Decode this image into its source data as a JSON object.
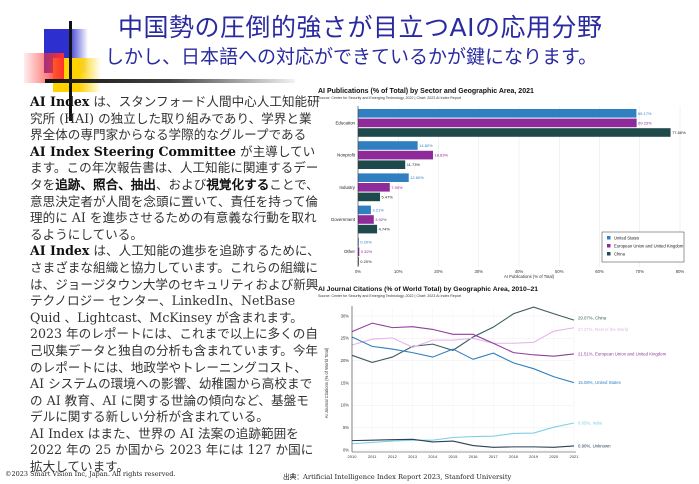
{
  "header": {
    "title": "中国勢の圧倒的強さが目立つAIの応用分野",
    "subtitle": "しかし、日本語への対応ができているかが鍵になります。"
  },
  "body": {
    "p1": [
      {
        "t": "AI Index",
        "b": true
      },
      {
        "t": " は、スタンフォード人間中心人工知能研究所 (HAI) の独立した取り組みであり、学界と業界全体の専門家からなる学際的なグループである ",
        "b": false
      },
      {
        "t": "AI Index Steering Committee",
        "b": true
      },
      {
        "t": " が主導しています。この年次報告書は、人工知能に関連するデータを",
        "b": false
      },
      {
        "t": "追跡、照合、抽出",
        "b": true
      },
      {
        "t": "、および",
        "b": false
      },
      {
        "t": "視覚化する",
        "b": true
      },
      {
        "t": "ことで、意思決定者が人間を念頭に置いて、責任を持って倫理的に AI を進歩させるための有意義な行動を取れるようにしている。",
        "b": false
      }
    ],
    "p2": [
      {
        "t": "AI Index",
        "b": true
      },
      {
        "t": " は、人工知能の進歩を追跡するために、さまざまな組織と協力しています。これらの組織には、ジョージタウン大学のセキュリティおよび新興テクノロジー センター、LinkedIn、NetBase Quid 、Lightcast、McKinsey が含まれます。2023 年のレポートには、これまで以上に多くの自己収集データと独自の分析も含まれています。今年のレポートには、地政学やトレーニングコスト、AI システムの環境への影響、幼稚園から高校までの AI 教育、AI に関する世論の傾向など、基盤モデルに関する新しい分析が含まれている。",
        "b": false
      }
    ],
    "p3": [
      {
        "t": "AI Index はまた、世界の AI 法案の追跡範囲を 2022 年の 25 か国から 2023 年には 127 か国に拡大しています。",
        "b": false
      }
    ]
  },
  "footer": {
    "copyright": "©2023 Smart Vision Inc, Japan. All rights reserved.",
    "source": "出典：Artificial Intelligence Index Report 2023, Stanford University"
  },
  "chart_data": [
    {
      "type": "bar",
      "orientation": "horizontal",
      "title": "AI Publications (% of Total) by Sector and Geographic Area, 2021",
      "subtitle": "Source: Center for Security and Emerging Technology, 2022 | Chart: 2023 AI Index Report",
      "xlabel": "AI Publications (% of Total)",
      "ylabel": "",
      "xlim": [
        0,
        80
      ],
      "xticks": [
        "0%",
        "10%",
        "20%",
        "30%",
        "40%",
        "50%",
        "60%",
        "70%",
        "80%"
      ],
      "grid": true,
      "legend_position": "bottom-right",
      "categories": [
        "Education",
        "Nonprofit",
        "Industry",
        "Government",
        "Other"
      ],
      "series": [
        {
          "name": "United States",
          "color": "#2f7fc1",
          "values": [
            69.17,
            14.82,
            12.6,
            3.21,
            0.2
          ],
          "labels": [
            "69.17%",
            "14.82%",
            "12.60%",
            "3.21%",
            "0.20%"
          ]
        },
        {
          "name": "European Union and United Kingdom",
          "color": "#8e2a9a",
          "values": [
            69.23,
            18.63,
            7.9,
            3.92,
            0.32
          ],
          "labels": [
            "69.23%",
            "18.63%",
            "7.90%",
            "3.92%",
            "0.32%"
          ]
        },
        {
          "name": "China",
          "color": "#1e4a4c",
          "values": [
            77.66,
            11.73,
            5.47,
            4.74,
            0.2
          ],
          "labels": [
            "77.66%",
            "11.73%",
            "5.47%",
            "4.74%",
            "0.20%"
          ]
        }
      ]
    },
    {
      "type": "line",
      "title": "AI Journal Citations (% of World Total) by Geographic Area, 2010–21",
      "subtitle": "Source: Center for Security and Emerging Technology, 2022 | Chart: 2023 AI Index Report",
      "xlabel": "",
      "ylabel": "AI Journal Citations (% of World Total)",
      "ylim": [
        0,
        30
      ],
      "yticks": [
        "0%",
        "5%",
        "10%",
        "15%",
        "20%",
        "25%",
        "30%"
      ],
      "x": [
        2010,
        2011,
        2012,
        2013,
        2014,
        2015,
        2016,
        2017,
        2018,
        2019,
        2020,
        2021
      ],
      "grid": true,
      "series": [
        {
          "name": "China",
          "label": "29.07%, China",
          "color": "#3b5c5e",
          "values": [
            21.2,
            19.6,
            20.8,
            23.2,
            23.7,
            22.3,
            25.3,
            27.5,
            30.5,
            32.0,
            30.5,
            29.07
          ]
        },
        {
          "name": "Rest of the World",
          "label": "27.37%, Rest of the World",
          "color": "#e6b3ec",
          "values": [
            23.5,
            24.8,
            25.1,
            23.0,
            24.6,
            24.6,
            25.0,
            23.9,
            23.9,
            24.1,
            26.6,
            27.37
          ]
        },
        {
          "name": "European Union and United Kingdom",
          "label": "21.51%, European Union and United Kingdom",
          "color": "#8e3f9a",
          "values": [
            26.5,
            28.4,
            27.4,
            27.6,
            27.0,
            25.9,
            25.9,
            23.9,
            21.8,
            21.3,
            21.0,
            21.51
          ]
        },
        {
          "name": "United States",
          "label": "15.08%, United States",
          "color": "#2f7fc1",
          "values": [
            25.3,
            23.2,
            22.6,
            21.8,
            20.8,
            22.6,
            20.3,
            21.7,
            19.5,
            18.2,
            16.4,
            15.08
          ]
        },
        {
          "name": "India",
          "label": "6.05%, India",
          "color": "#7fd0e6",
          "values": [
            1.4,
            1.7,
            2.0,
            2.2,
            2.2,
            2.8,
            3.0,
            3.1,
            3.7,
            3.8,
            5.1,
            6.05
          ]
        },
        {
          "name": "Unknown",
          "label": "0.90%, Unknown",
          "color": "#2c3f55",
          "values": [
            2.1,
            2.2,
            2.3,
            2.4,
            1.8,
            2.0,
            1.0,
            0.6,
            0.7,
            0.7,
            0.6,
            0.9
          ]
        }
      ]
    }
  ]
}
